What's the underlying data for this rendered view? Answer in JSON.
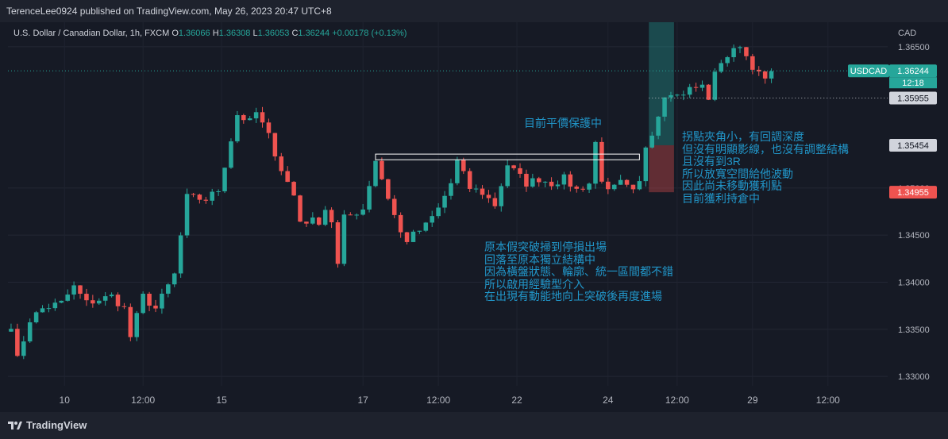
{
  "header": {
    "publisher_line": "TerenceLee0924 published on TradingView.com, May 26, 2023 20:47 UTC+8"
  },
  "legend": {
    "symbol_title": "U.S. Dollar / Canadian Dollar, 1h, FXCM",
    "o_label": "O",
    "o_value": "1.36066",
    "h_label": "H",
    "h_value": "1.36308",
    "l_label": "L",
    "l_value": "1.36053",
    "c_label": "C",
    "c_value": "1.36244",
    "change": "+0.00178 (+0.13%)"
  },
  "footer": {
    "brand": "TradingView"
  },
  "colors": {
    "up": "#26a69a",
    "down": "#ef5350",
    "annotation": "#2196c9",
    "background": "#161a25"
  },
  "chart_data": {
    "type": "candlestick",
    "symbol": "USDCAD",
    "currency_label": "CAD",
    "ylim": [
      1.329,
      1.3676
    ],
    "yticks": [
      1.33,
      1.335,
      1.34,
      1.345,
      1.35,
      1.365
    ],
    "ytick_labels": [
      "1.33000",
      "1.33500",
      "1.34000",
      "1.34500",
      "1.35000",
      "1.36500"
    ],
    "xticks": [
      {
        "label": "10",
        "x": 8.5
      },
      {
        "label": "12:00",
        "x": 21
      },
      {
        "label": "15",
        "x": 33.5
      },
      {
        "label": "17",
        "x": 56
      },
      {
        "label": "12:00",
        "x": 68
      },
      {
        "label": "22",
        "x": 80.5
      },
      {
        "label": "24",
        "x": 95
      },
      {
        "label": "12:00",
        "x": 106
      },
      {
        "label": "29",
        "x": 118
      },
      {
        "label": "12:00",
        "x": 130
      }
    ],
    "price_labels": [
      {
        "name": "symbol",
        "text": "USDCAD",
        "value": 1.36244
      },
      {
        "name": "last-price",
        "text": "1.36244",
        "sub": "12:18",
        "value": 1.36244
      },
      {
        "name": "stop",
        "text": "1.35955",
        "value": 1.35955
      },
      {
        "name": "entry",
        "text": "1.35454",
        "value": 1.35454
      },
      {
        "name": "loss-level",
        "text": "1.34955",
        "value": 1.34955
      }
    ],
    "position": {
      "side": "long",
      "entry": 1.35454,
      "stop": 1.34955,
      "target": 1.3676,
      "x_start": 101.5,
      "x_end": 105.5
    },
    "breakout_box": {
      "x_start": 58,
      "x_end": 100,
      "top": 1.3536,
      "bottom": 1.353
    },
    "anchors": [
      [
        0,
        1.3355
      ],
      [
        1,
        1.3318
      ],
      [
        3,
        1.336
      ],
      [
        5,
        1.3372
      ],
      [
        8,
        1.3378
      ],
      [
        10,
        1.3395
      ],
      [
        12,
        1.3378
      ],
      [
        16,
        1.3385
      ],
      [
        18,
        1.3372
      ],
      [
        19,
        1.3342
      ],
      [
        21,
        1.3385
      ],
      [
        23,
        1.3372
      ],
      [
        26,
        1.3408
      ],
      [
        28,
        1.349
      ],
      [
        31,
        1.3488
      ],
      [
        33,
        1.3498
      ],
      [
        36,
        1.3578
      ],
      [
        38,
        1.357
      ],
      [
        39,
        1.358
      ],
      [
        41,
        1.3555
      ],
      [
        43,
        1.352
      ],
      [
        45,
        1.3492
      ],
      [
        46,
        1.3465
      ],
      [
        49,
        1.3465
      ],
      [
        50,
        1.3478
      ],
      [
        51,
        1.3465
      ],
      [
        52,
        1.3418
      ],
      [
        53,
        1.3468
      ],
      [
        56,
        1.3478
      ],
      [
        58,
        1.353
      ],
      [
        60,
        1.349
      ],
      [
        62,
        1.3452
      ],
      [
        63,
        1.3445
      ],
      [
        66,
        1.346
      ],
      [
        68,
        1.3478
      ],
      [
        70,
        1.3505
      ],
      [
        71,
        1.3528
      ],
      [
        73,
        1.35
      ],
      [
        75,
        1.3495
      ],
      [
        77,
        1.3482
      ],
      [
        79,
        1.3525
      ],
      [
        82,
        1.3505
      ],
      [
        84,
        1.351
      ],
      [
        86,
        1.3505
      ],
      [
        88,
        1.351
      ],
      [
        90,
        1.3498
      ],
      [
        92,
        1.3505
      ],
      [
        93,
        1.3548
      ],
      [
        94,
        1.351
      ],
      [
        95,
        1.3495
      ],
      [
        97,
        1.3505
      ],
      [
        99,
        1.3495
      ],
      [
        100,
        1.3505
      ],
      [
        101,
        1.3545
      ],
      [
        102,
        1.356
      ],
      [
        103,
        1.3578
      ],
      [
        104,
        1.36
      ],
      [
        105,
        1.3603
      ],
      [
        106,
        1.3598
      ],
      [
        108,
        1.3605
      ],
      [
        110,
        1.3608
      ],
      [
        111,
        1.3596
      ],
      [
        112,
        1.362
      ],
      [
        113,
        1.3635
      ],
      [
        115,
        1.3645
      ],
      [
        116,
        1.3653
      ],
      [
        117,
        1.364
      ],
      [
        118,
        1.363
      ],
      [
        119,
        1.362
      ],
      [
        120,
        1.3615
      ],
      [
        121,
        1.3624
      ]
    ]
  },
  "annotations": {
    "protect": "目前平價保護中",
    "right_lines": [
      "拐點夾角小，有回調深度",
      "但沒有明顯影線，也沒有調整結構",
      "且沒有到3R",
      "所以放寬空間給他波動",
      "因此尚未移動獲利點",
      "目前獲利持倉中"
    ],
    "bottom_lines": [
      "原本假突破掃到停損出場",
      "回落至原本獨立結構中",
      "因為橫盤狀態、輪廓、統一區間都不錯",
      "所以啟用經驗型介入",
      "在出現有動能地向上突破後再度進場"
    ]
  }
}
